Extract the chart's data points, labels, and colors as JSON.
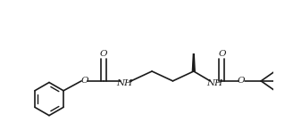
{
  "background": "#ffffff",
  "lc": "#1a1a1a",
  "lw": 1.2,
  "figsize": [
    3.28,
    1.56
  ],
  "dpi": 100,
  "xlim": [
    -0.5,
    10.5
  ],
  "ylim": [
    -2.5,
    3.5
  ]
}
